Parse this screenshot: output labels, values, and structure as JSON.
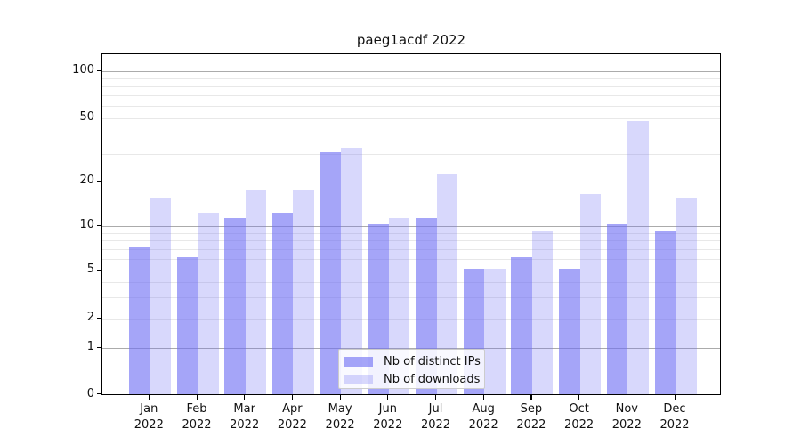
{
  "title": "paeg1acdf 2022",
  "chart_data": {
    "type": "bar",
    "title": "paeg1acdf 2022",
    "months": [
      "Jan",
      "Feb",
      "Mar",
      "Apr",
      "May",
      "Jun",
      "Jul",
      "Aug",
      "Sep",
      "Oct",
      "Nov",
      "Dec"
    ],
    "year": "2022",
    "series": [
      {
        "name": "Nb of distinct IPs",
        "values": [
          7,
          6,
          11,
          12,
          30,
          10,
          11,
          5,
          6,
          5,
          10,
          9
        ]
      },
      {
        "name": "Nb of downloads",
        "values": [
          15,
          12,
          17,
          17,
          32,
          11,
          22,
          5,
          9,
          16,
          47,
          15
        ]
      }
    ],
    "yscale": "symlog",
    "y_tick_labels": [
      "100",
      "50",
      "20",
      "10",
      "5",
      "2",
      "1",
      "0"
    ],
    "y_tick_values": [
      100,
      50,
      20,
      10,
      5,
      2,
      1,
      0
    ],
    "ylim": [
      0,
      130
    ],
    "grid": "on",
    "legend_position": "lower center"
  },
  "colors": {
    "bar_ips": "rgba(110,110,243,0.62)",
    "bar_downloads": "rgba(110,110,243,0.27)",
    "grid_major": "#ababab",
    "grid_minor": "#e8e8e8",
    "spine": "#000000",
    "text": "#111111",
    "legend_border": "#cccccc",
    "legend_bg": "rgba(255,255,255,0.85)"
  }
}
